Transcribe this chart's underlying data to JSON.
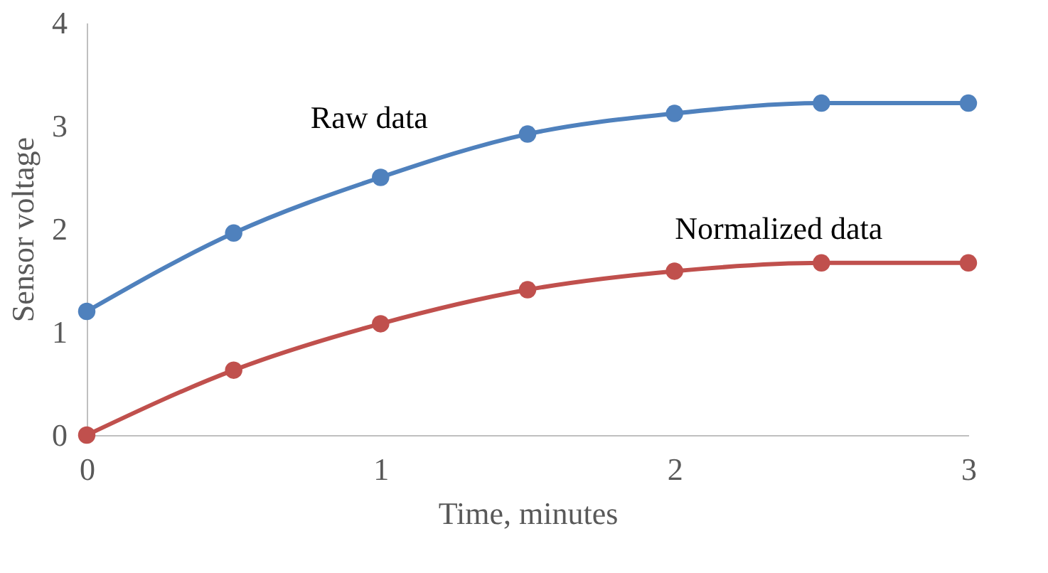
{
  "chart_data": {
    "type": "line",
    "xlabel": "Time, minutes",
    "ylabel": "Sensor voltage",
    "x": [
      0,
      0.5,
      1,
      1.5,
      2,
      2.5,
      3
    ],
    "series": [
      {
        "name": "Raw data",
        "color": "#4f81bd",
        "values": [
          1.2,
          1.96,
          2.5,
          2.92,
          3.12,
          3.22,
          3.22
        ]
      },
      {
        "name": "Normalized data",
        "color": "#c0504d",
        "values": [
          0,
          0.63,
          1.08,
          1.41,
          1.59,
          1.67,
          1.67
        ]
      }
    ],
    "xlim": [
      0,
      3
    ],
    "xticks": [
      0,
      1,
      2,
      3
    ],
    "ylim": [
      0,
      4
    ],
    "yticks": [
      0,
      1,
      2,
      3,
      4
    ],
    "grid": false,
    "legend": false,
    "marker": "circle",
    "line_style": "solid"
  }
}
